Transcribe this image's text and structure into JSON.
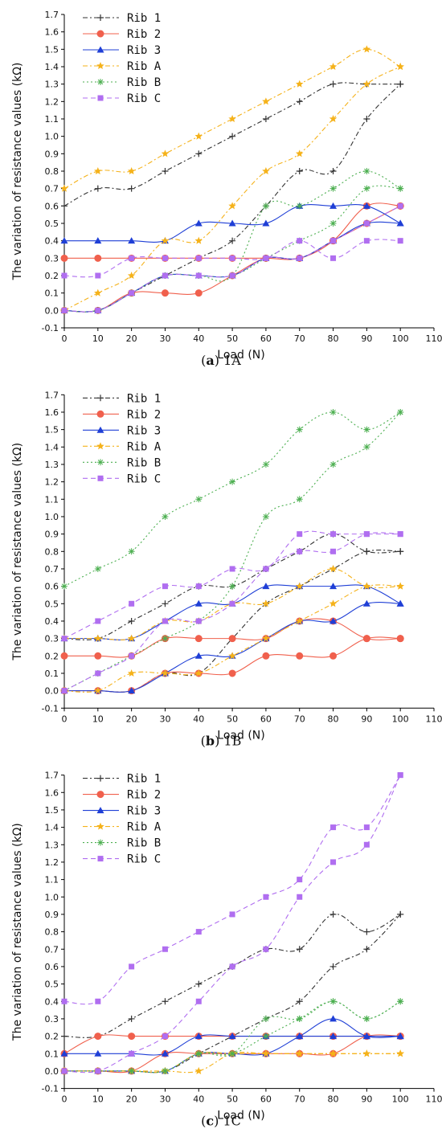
{
  "chart_data": [
    {
      "type": "line",
      "caption": {
        "letter": "a",
        "text": "1A"
      },
      "xlabel": "Load (N)",
      "ylabel": "The variation of resistance values (kΩ)",
      "xlim": [
        0,
        110
      ],
      "ylim": [
        -0.1,
        1.7
      ],
      "xticks": [
        0,
        10,
        20,
        30,
        40,
        50,
        60,
        70,
        80,
        90,
        100,
        110
      ],
      "yticks": [
        -0.1,
        0.0,
        0.1,
        0.2,
        0.3,
        0.4,
        0.5,
        0.6,
        0.7,
        0.8,
        0.9,
        1.0,
        1.1,
        1.2,
        1.3,
        1.4,
        1.5,
        1.6,
        1.7
      ],
      "x": [
        0,
        10,
        20,
        30,
        40,
        50,
        60,
        70,
        80,
        90,
        100
      ],
      "legend": "top-left",
      "series": [
        {
          "name": "Rib 1",
          "color": "#333333",
          "marker": "plus",
          "dash": "dashdot",
          "loading": [
            0.0,
            0.0,
            0.1,
            0.2,
            0.3,
            0.4,
            0.6,
            0.8,
            0.8,
            1.1,
            1.3
          ],
          "unloading": [
            0.6,
            0.7,
            0.7,
            0.8,
            0.9,
            1.0,
            1.1,
            1.2,
            1.3,
            1.3,
            1.3
          ]
        },
        {
          "name": "Rib 2",
          "color": "#f0604d",
          "marker": "circle",
          "dash": "solid",
          "loading": [
            0.0,
            0.0,
            0.1,
            0.1,
            0.1,
            0.2,
            0.3,
            0.3,
            0.4,
            0.5,
            0.6
          ],
          "unloading": [
            0.3,
            0.3,
            0.3,
            0.3,
            0.3,
            0.3,
            0.3,
            0.3,
            0.4,
            0.6,
            0.6
          ]
        },
        {
          "name": "Rib 3",
          "color": "#1f3fd6",
          "marker": "triangle",
          "dash": "solid",
          "loading": [
            0.0,
            0.0,
            0.1,
            0.2,
            0.2,
            0.2,
            0.3,
            0.3,
            0.4,
            0.5,
            0.5
          ],
          "unloading": [
            0.4,
            0.4,
            0.4,
            0.4,
            0.5,
            0.5,
            0.5,
            0.6,
            0.6,
            0.6,
            0.5
          ]
        },
        {
          "name": "Rib A",
          "color": "#f5b21a",
          "marker": "star",
          "dash": "dashdot",
          "loading": [
            0.0,
            0.1,
            0.2,
            0.4,
            0.4,
            0.6,
            0.8,
            0.9,
            1.1,
            1.3,
            1.4
          ],
          "unloading": [
            0.7,
            0.8,
            0.8,
            0.9,
            1.0,
            1.1,
            1.2,
            1.3,
            1.4,
            1.5,
            1.4
          ]
        },
        {
          "name": "Rib B",
          "color": "#4caf50",
          "marker": "asterisk",
          "dash": "dotted",
          "loading": [
            0.0,
            0.0,
            0.1,
            0.2,
            0.2,
            0.2,
            0.3,
            0.4,
            0.5,
            0.7,
            0.7
          ],
          "unloading": [
            0.0,
            0.0,
            0.1,
            0.2,
            0.2,
            0.2,
            0.6,
            0.6,
            0.7,
            0.8,
            0.7
          ]
        },
        {
          "name": "Rib C",
          "color": "#b06ef0",
          "marker": "square",
          "dash": "dashed",
          "loading": [
            0.0,
            0.0,
            0.1,
            0.2,
            0.2,
            0.2,
            0.3,
            0.3,
            0.4,
            0.5,
            0.6
          ],
          "unloading": [
            0.2,
            0.2,
            0.3,
            0.3,
            0.3,
            0.3,
            0.3,
            0.4,
            0.3,
            0.4,
            0.4
          ]
        }
      ]
    },
    {
      "type": "line",
      "caption": {
        "letter": "b",
        "text": "1B"
      },
      "xlabel": "Load (N)",
      "ylabel": "The variation of resistance values (kΩ)",
      "xlim": [
        0,
        110
      ],
      "ylim": [
        -0.1,
        1.7
      ],
      "xticks": [
        0,
        10,
        20,
        30,
        40,
        50,
        60,
        70,
        80,
        90,
        100,
        110
      ],
      "yticks": [
        -0.1,
        0.0,
        0.1,
        0.2,
        0.3,
        0.4,
        0.5,
        0.6,
        0.7,
        0.8,
        0.9,
        1.0,
        1.1,
        1.2,
        1.3,
        1.4,
        1.5,
        1.6,
        1.7
      ],
      "x": [
        0,
        10,
        20,
        30,
        40,
        50,
        60,
        70,
        80,
        90,
        100
      ],
      "legend": "top-left",
      "series": [
        {
          "name": "Rib 1",
          "color": "#333333",
          "marker": "plus",
          "dash": "dashdot",
          "loading": [
            0.0,
            0.0,
            0.0,
            0.1,
            0.1,
            0.3,
            0.5,
            0.6,
            0.7,
            0.8,
            0.8
          ],
          "unloading": [
            0.3,
            0.3,
            0.4,
            0.5,
            0.6,
            0.6,
            0.7,
            0.8,
            0.9,
            0.8,
            0.8
          ]
        },
        {
          "name": "Rib 2",
          "color": "#f0604d",
          "marker": "circle",
          "dash": "solid",
          "loading": [
            0.0,
            0.0,
            0.0,
            0.1,
            0.1,
            0.1,
            0.2,
            0.2,
            0.2,
            0.3,
            0.3
          ],
          "unloading": [
            0.2,
            0.2,
            0.2,
            0.3,
            0.3,
            0.3,
            0.3,
            0.4,
            0.4,
            0.3,
            0.3
          ]
        },
        {
          "name": "Rib 3",
          "color": "#1f3fd6",
          "marker": "triangle",
          "dash": "solid",
          "loading": [
            0.0,
            0.0,
            0.0,
            0.1,
            0.2,
            0.2,
            0.3,
            0.4,
            0.4,
            0.5,
            0.5
          ],
          "unloading": [
            0.3,
            0.3,
            0.3,
            0.4,
            0.5,
            0.5,
            0.6,
            0.6,
            0.6,
            0.6,
            0.5
          ]
        },
        {
          "name": "Rib A",
          "color": "#f5b21a",
          "marker": "star",
          "dash": "dashdot",
          "loading": [
            0.0,
            0.0,
            0.1,
            0.1,
            0.1,
            0.2,
            0.3,
            0.4,
            0.5,
            0.6,
            0.6
          ],
          "unloading": [
            0.3,
            0.3,
            0.3,
            0.4,
            0.4,
            0.5,
            0.5,
            0.6,
            0.7,
            0.6,
            0.6
          ]
        },
        {
          "name": "Rib B",
          "color": "#4caf50",
          "marker": "asterisk",
          "dash": "dotted",
          "loading": [
            0.0,
            0.1,
            0.2,
            0.3,
            0.4,
            0.6,
            1.0,
            1.1,
            1.3,
            1.4,
            1.6
          ],
          "unloading": [
            0.6,
            0.7,
            0.8,
            1.0,
            1.1,
            1.2,
            1.3,
            1.5,
            1.6,
            1.5,
            1.6
          ]
        },
        {
          "name": "Rib C",
          "color": "#b06ef0",
          "marker": "square",
          "dash": "dashed",
          "loading": [
            0.0,
            0.1,
            0.2,
            0.4,
            0.4,
            0.5,
            0.7,
            0.8,
            0.8,
            0.9,
            0.9
          ],
          "unloading": [
            0.3,
            0.4,
            0.5,
            0.6,
            0.6,
            0.7,
            0.7,
            0.9,
            0.9,
            0.9,
            0.9
          ]
        }
      ]
    },
    {
      "type": "line",
      "caption": {
        "letter": "c",
        "text": "1C"
      },
      "xlabel": "Load (N)",
      "ylabel": "The variation of resistance values (kΩ)",
      "xlim": [
        0,
        110
      ],
      "ylim": [
        -0.1,
        1.7
      ],
      "xticks": [
        0,
        10,
        20,
        30,
        40,
        50,
        60,
        70,
        80,
        90,
        100,
        110
      ],
      "yticks": [
        -0.1,
        0.0,
        0.1,
        0.2,
        0.3,
        0.4,
        0.5,
        0.6,
        0.7,
        0.8,
        0.9,
        1.0,
        1.1,
        1.2,
        1.3,
        1.4,
        1.5,
        1.6,
        1.7
      ],
      "x": [
        0,
        10,
        20,
        30,
        40,
        50,
        60,
        70,
        80,
        90,
        100
      ],
      "legend": "top-left",
      "series": [
        {
          "name": "Rib 1",
          "color": "#333333",
          "marker": "plus",
          "dash": "dashdot",
          "loading": [
            0.0,
            0.0,
            0.0,
            0.0,
            0.1,
            0.2,
            0.3,
            0.4,
            0.6,
            0.7,
            0.9
          ],
          "unloading": [
            0.2,
            0.2,
            0.3,
            0.4,
            0.5,
            0.6,
            0.7,
            0.7,
            0.9,
            0.8,
            0.9
          ]
        },
        {
          "name": "Rib 2",
          "color": "#f0604d",
          "marker": "circle",
          "dash": "solid",
          "loading": [
            0.0,
            0.0,
            0.0,
            0.1,
            0.1,
            0.1,
            0.1,
            0.1,
            0.1,
            0.2,
            0.2
          ],
          "unloading": [
            0.1,
            0.2,
            0.2,
            0.2,
            0.2,
            0.2,
            0.2,
            0.2,
            0.2,
            0.2,
            0.2
          ]
        },
        {
          "name": "Rib 3",
          "color": "#1f3fd6",
          "marker": "triangle",
          "dash": "solid",
          "loading": [
            0.0,
            0.0,
            0.0,
            0.0,
            0.1,
            0.1,
            0.1,
            0.2,
            0.3,
            0.2,
            0.2
          ],
          "unloading": [
            0.1,
            0.1,
            0.1,
            0.1,
            0.2,
            0.2,
            0.2,
            0.2,
            0.2,
            0.2,
            0.2
          ]
        },
        {
          "name": "Rib A",
          "color": "#f5b21a",
          "marker": "star",
          "dash": "dashdot",
          "loading": [
            0.0,
            0.0,
            0.0,
            0.0,
            0.0,
            0.1,
            0.1,
            0.1,
            0.1,
            0.1,
            0.1
          ],
          "unloading": [
            0.0,
            0.0,
            0.0,
            0.0,
            0.1,
            0.1,
            0.1,
            0.1,
            0.1,
            0.1,
            0.1
          ]
        },
        {
          "name": "Rib B",
          "color": "#4caf50",
          "marker": "asterisk",
          "dash": "dotted",
          "loading": [
            0.0,
            0.0,
            0.0,
            0.0,
            0.1,
            0.1,
            0.2,
            0.3,
            0.4,
            0.3,
            0.4
          ],
          "unloading": [
            0.0,
            0.0,
            0.0,
            0.0,
            0.1,
            0.1,
            0.3,
            0.3,
            0.4,
            0.3,
            0.4
          ]
        },
        {
          "name": "Rib C",
          "color": "#b06ef0",
          "marker": "square",
          "dash": "dashed",
          "loading": [
            0.0,
            0.0,
            0.1,
            0.2,
            0.4,
            0.6,
            0.7,
            1.0,
            1.2,
            1.3,
            1.7
          ],
          "unloading": [
            0.4,
            0.4,
            0.6,
            0.7,
            0.8,
            0.9,
            1.0,
            1.1,
            1.4,
            1.4,
            1.7
          ]
        }
      ]
    }
  ]
}
